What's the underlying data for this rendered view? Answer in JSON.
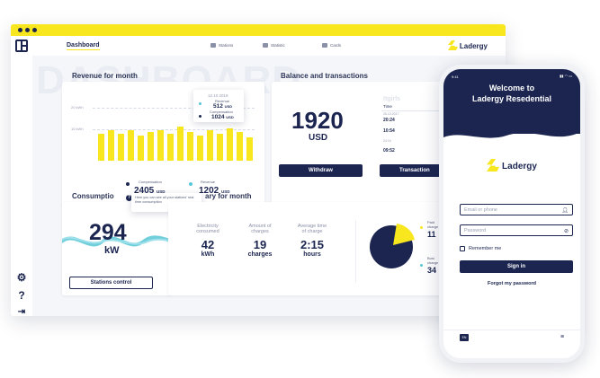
{
  "header": {
    "title": "Dashboard",
    "watermark": "DASHBOARD",
    "nav": [
      {
        "label": "Stations",
        "icon": "station-icon"
      },
      {
        "label": "Statistic",
        "icon": "statistic-icon"
      },
      {
        "label": "Cards",
        "icon": "card-icon"
      }
    ],
    "brand": "Ladergy"
  },
  "colors": {
    "accent": "#f8e61e",
    "navy": "#1b2550",
    "teal": "#58c7d6"
  },
  "sidebar": {
    "icons": [
      "gear-icon",
      "help-icon",
      "logout-icon"
    ]
  },
  "revenue": {
    "title": "Revenue for month",
    "axis_top": "20 kWh",
    "axis_bottom": "10 kWh",
    "tooltip": {
      "date": "12.10.2018",
      "revenue_label": "Revenue",
      "revenue_value": "512",
      "revenue_unit": "USD",
      "comp_label": "Compensation",
      "comp_value": "1024",
      "comp_unit": "USD"
    },
    "compensation_label": "Compensation",
    "compensation_value": "2405",
    "compensation_unit": "USD",
    "revenue_label": "Revenue",
    "revenue_value": "1202",
    "revenue_unit": "USD"
  },
  "balance": {
    "title": "Balance and transactions",
    "amount": "1920",
    "currency": "USD",
    "withdraw": "Withdraw",
    "transactions_button": "Transaction",
    "table_title": "Itgirls",
    "col_time": "Time",
    "rows": [
      {
        "date": "26.10.2017",
        "time": "20:24"
      },
      {
        "date": "",
        "time": "10:54"
      },
      {
        "date": "24.10",
        "time": ""
      },
      {
        "date": "",
        "time": "09:52"
      }
    ]
  },
  "consumption": {
    "title": "Consumptio",
    "hint": "Here you can see all your stations' real time consumption",
    "value": "294",
    "unit": "kW",
    "button": "Stations control"
  },
  "summary": {
    "title": "ary for month",
    "stats": [
      {
        "label1": "Electricity",
        "label2": "consumed",
        "value": "42",
        "unit": "kWh"
      },
      {
        "label1": "Amount of",
        "label2": "charges",
        "value": "19",
        "unit": "charges"
      },
      {
        "label1": "Average time",
        "label2": "of charge",
        "value": "2:15",
        "unit": "hours"
      }
    ],
    "pie_legend": [
      {
        "label1": "Paid",
        "label2": "charge",
        "value": "11"
      },
      {
        "label1": "Busi",
        "label2": "charge",
        "value": "34"
      }
    ]
  },
  "phone": {
    "status_time": "9:41",
    "welcome_line1": "Welcome to",
    "welcome_line2": "Ladergy Resedential",
    "brand": "Ladergy",
    "email_placeholder": "Email or phone",
    "password_placeholder": "Password",
    "remember": "Remember me",
    "sign_in": "Sign in",
    "forgot": "Forgot my password",
    "lang": "EN"
  }
}
